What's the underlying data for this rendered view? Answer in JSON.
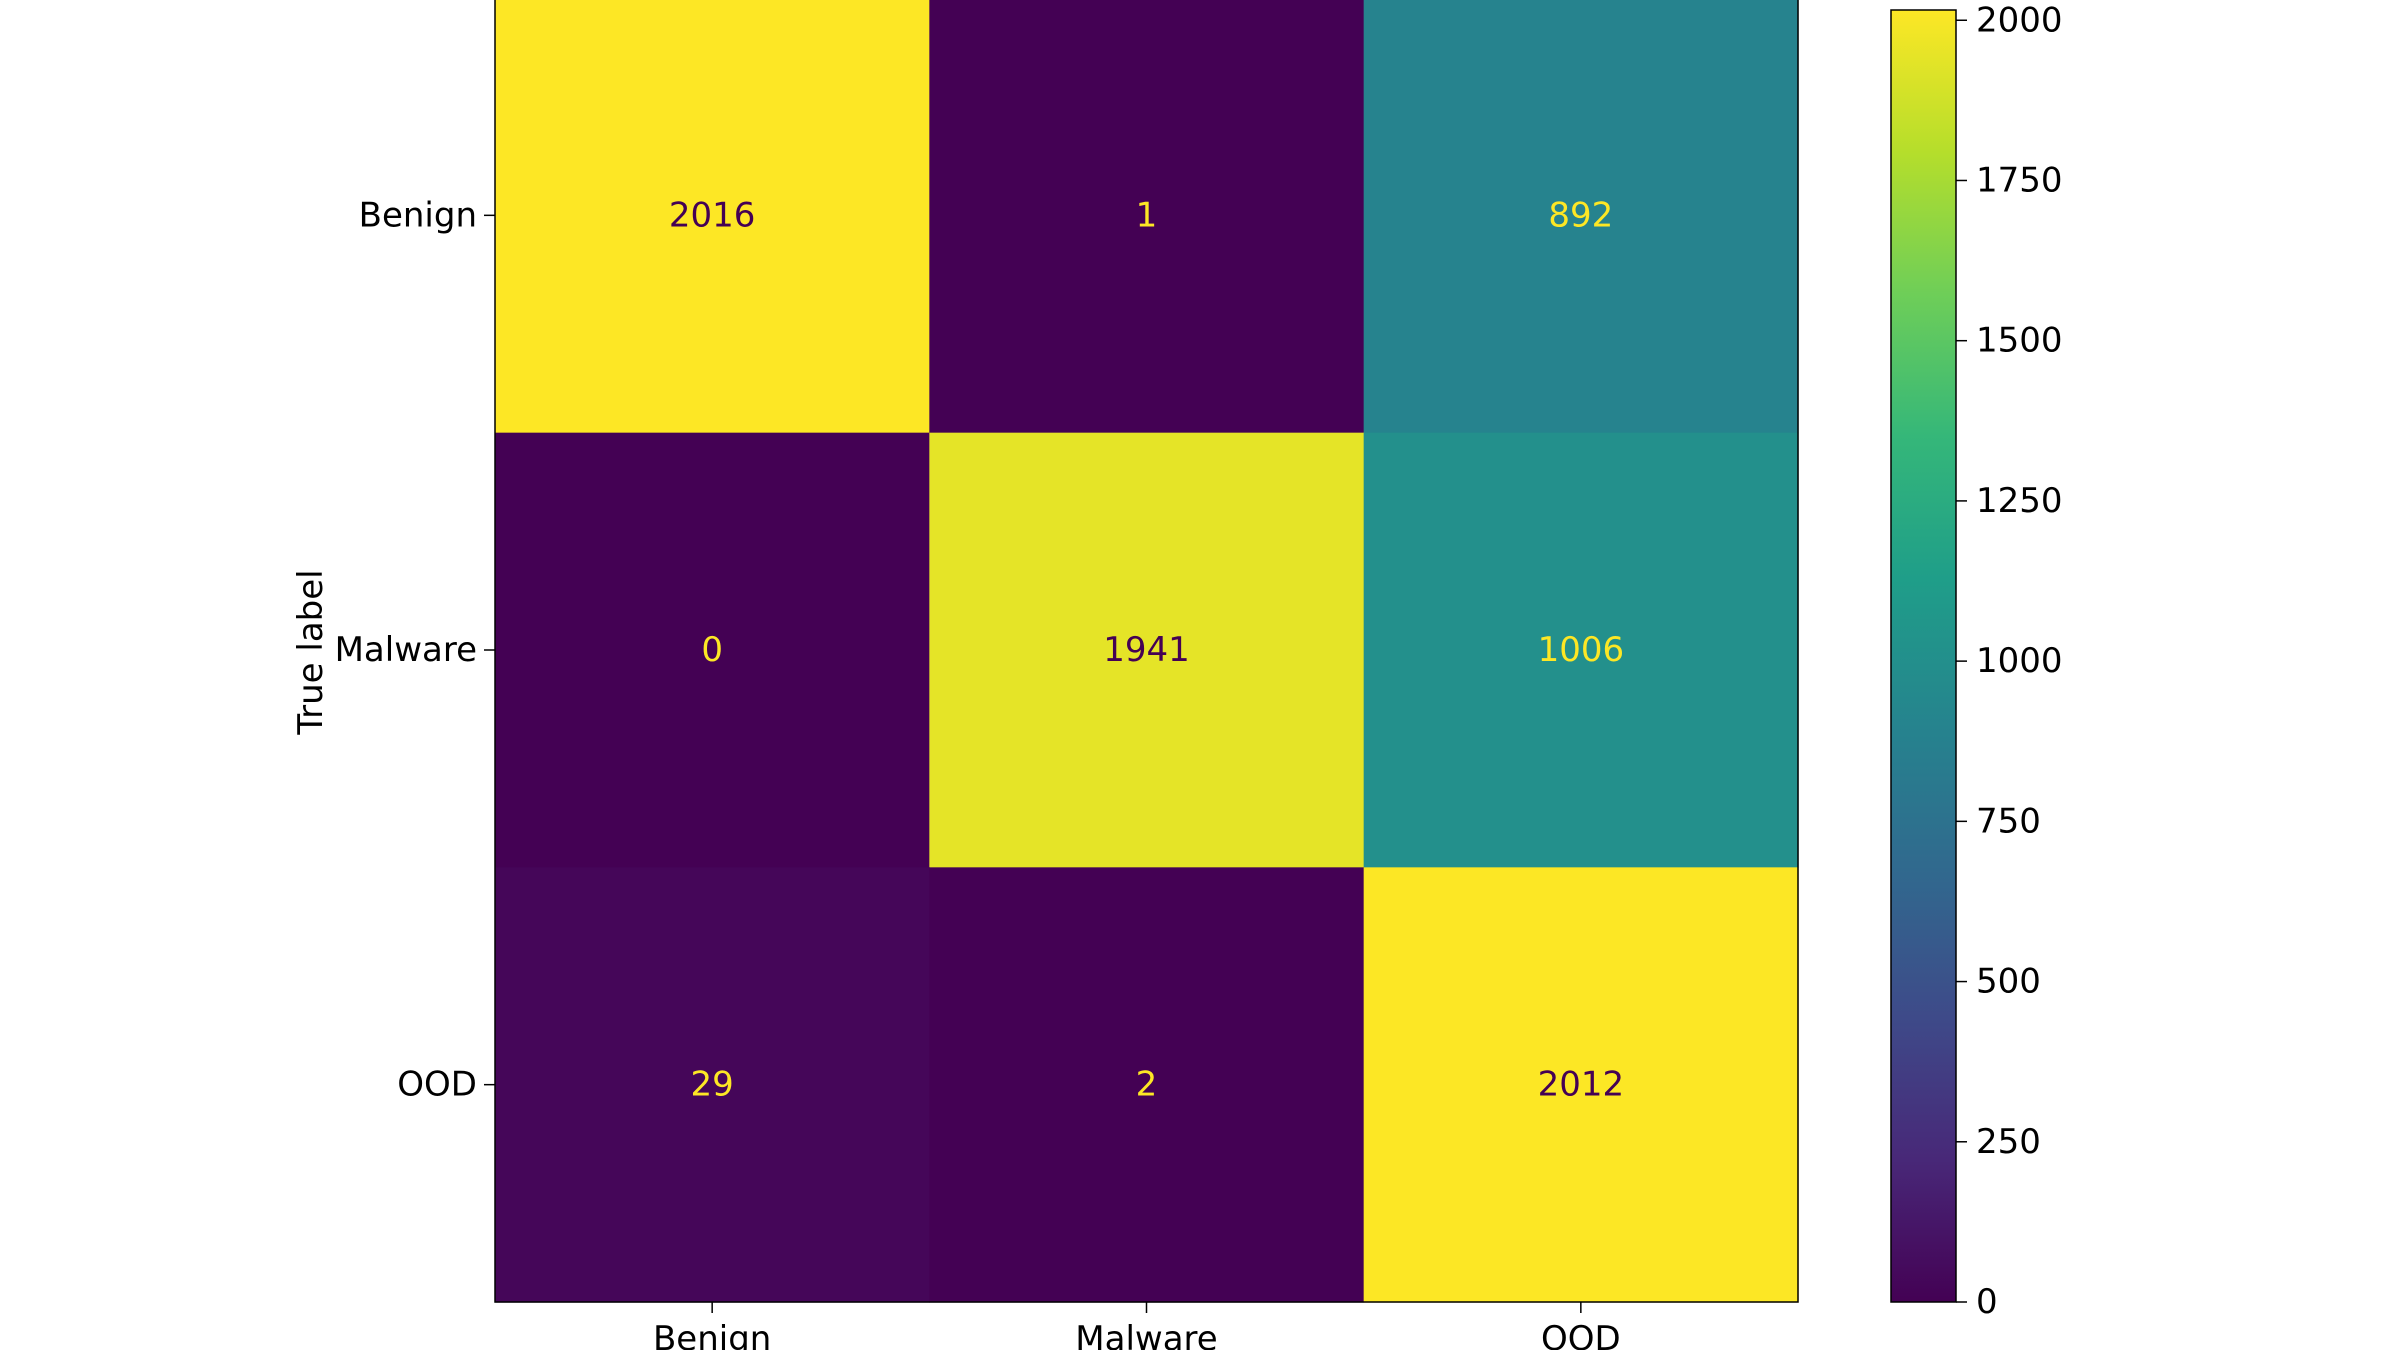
{
  "chart_data": {
    "type": "heatmap",
    "title": "",
    "xlabel": "",
    "ylabel": "True label",
    "x_categories": [
      "Benign",
      "Malware",
      "OOD"
    ],
    "y_categories": [
      "Benign",
      "Malware",
      "OOD"
    ],
    "matrix": [
      [
        2016,
        1,
        892
      ],
      [
        0,
        1941,
        1006
      ],
      [
        29,
        2,
        2012
      ]
    ],
    "colormap": "viridis",
    "colorbar": {
      "range": [
        0,
        2016
      ],
      "ticks": [
        0,
        250,
        500,
        750,
        1000,
        1250,
        1500,
        1750,
        2000
      ],
      "tick_labels": [
        "0",
        "250",
        "500",
        "750",
        "1000",
        "1250",
        "1500",
        "1750",
        "2000"
      ]
    },
    "text_colors": {
      "on_dark": "#fde725",
      "on_light": "#440154"
    },
    "grid": false
  }
}
